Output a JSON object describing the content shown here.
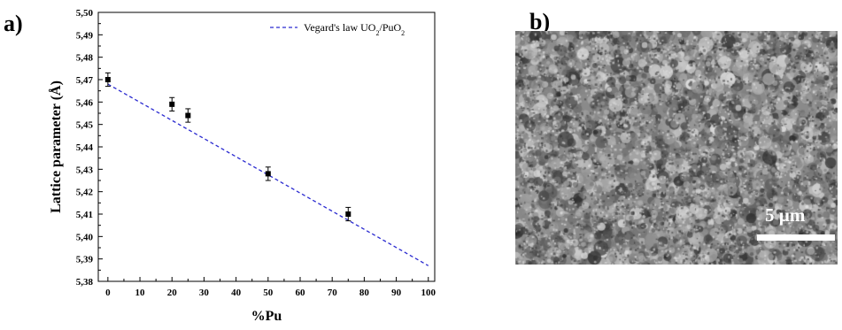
{
  "panels": {
    "a": "a)",
    "b": "b)"
  },
  "chart_data": {
    "type": "scatter",
    "xlabel": "%Pu",
    "ylabel": "Lattice parameter (Å)",
    "xlim": [
      -3,
      102
    ],
    "ylim": [
      5.38,
      5.5
    ],
    "xticks": [
      0,
      10,
      20,
      30,
      40,
      50,
      60,
      70,
      80,
      90,
      100
    ],
    "yticks": [
      5.38,
      5.39,
      5.4,
      5.41,
      5.42,
      5.43,
      5.44,
      5.45,
      5.46,
      5.47,
      5.48,
      5.49,
      5.5
    ],
    "xtick_labels": [
      "0",
      "10",
      "20",
      "30",
      "40",
      "50",
      "60",
      "70",
      "80",
      "90",
      "100"
    ],
    "ytick_labels": [
      "5,38",
      "5,39",
      "5,40",
      "5,41",
      "5,42",
      "5,43",
      "5,44",
      "5,45",
      "5,46",
      "5,47",
      "5,48",
      "5,49",
      "5,50"
    ],
    "series": [
      {
        "style": "markers-with-error-bars",
        "color": "#000000",
        "x": [
          0,
          20,
          25,
          50,
          75
        ],
        "y": [
          5.47,
          5.459,
          5.454,
          5.428,
          5.41
        ],
        "error": [
          0.003,
          0.003,
          0.003,
          0.003,
          0.003
        ]
      },
      {
        "name": "Vegard's law UO2/PuO2",
        "style": "dashed-line",
        "color": "#2a2ad0",
        "x": [
          0,
          100
        ],
        "y": [
          5.468,
          5.387
        ]
      }
    ],
    "legend": {
      "position": "top-right",
      "prefix": "Vegard's law UO",
      "sub1": "2",
      "middle": "/PuO",
      "sub2": "2"
    }
  },
  "sem_image": {
    "scale_label": "5 µm",
    "colors": {
      "base": "#8a8a8a",
      "light": "#d6d6d6",
      "dark": "#3a3a3a"
    }
  }
}
